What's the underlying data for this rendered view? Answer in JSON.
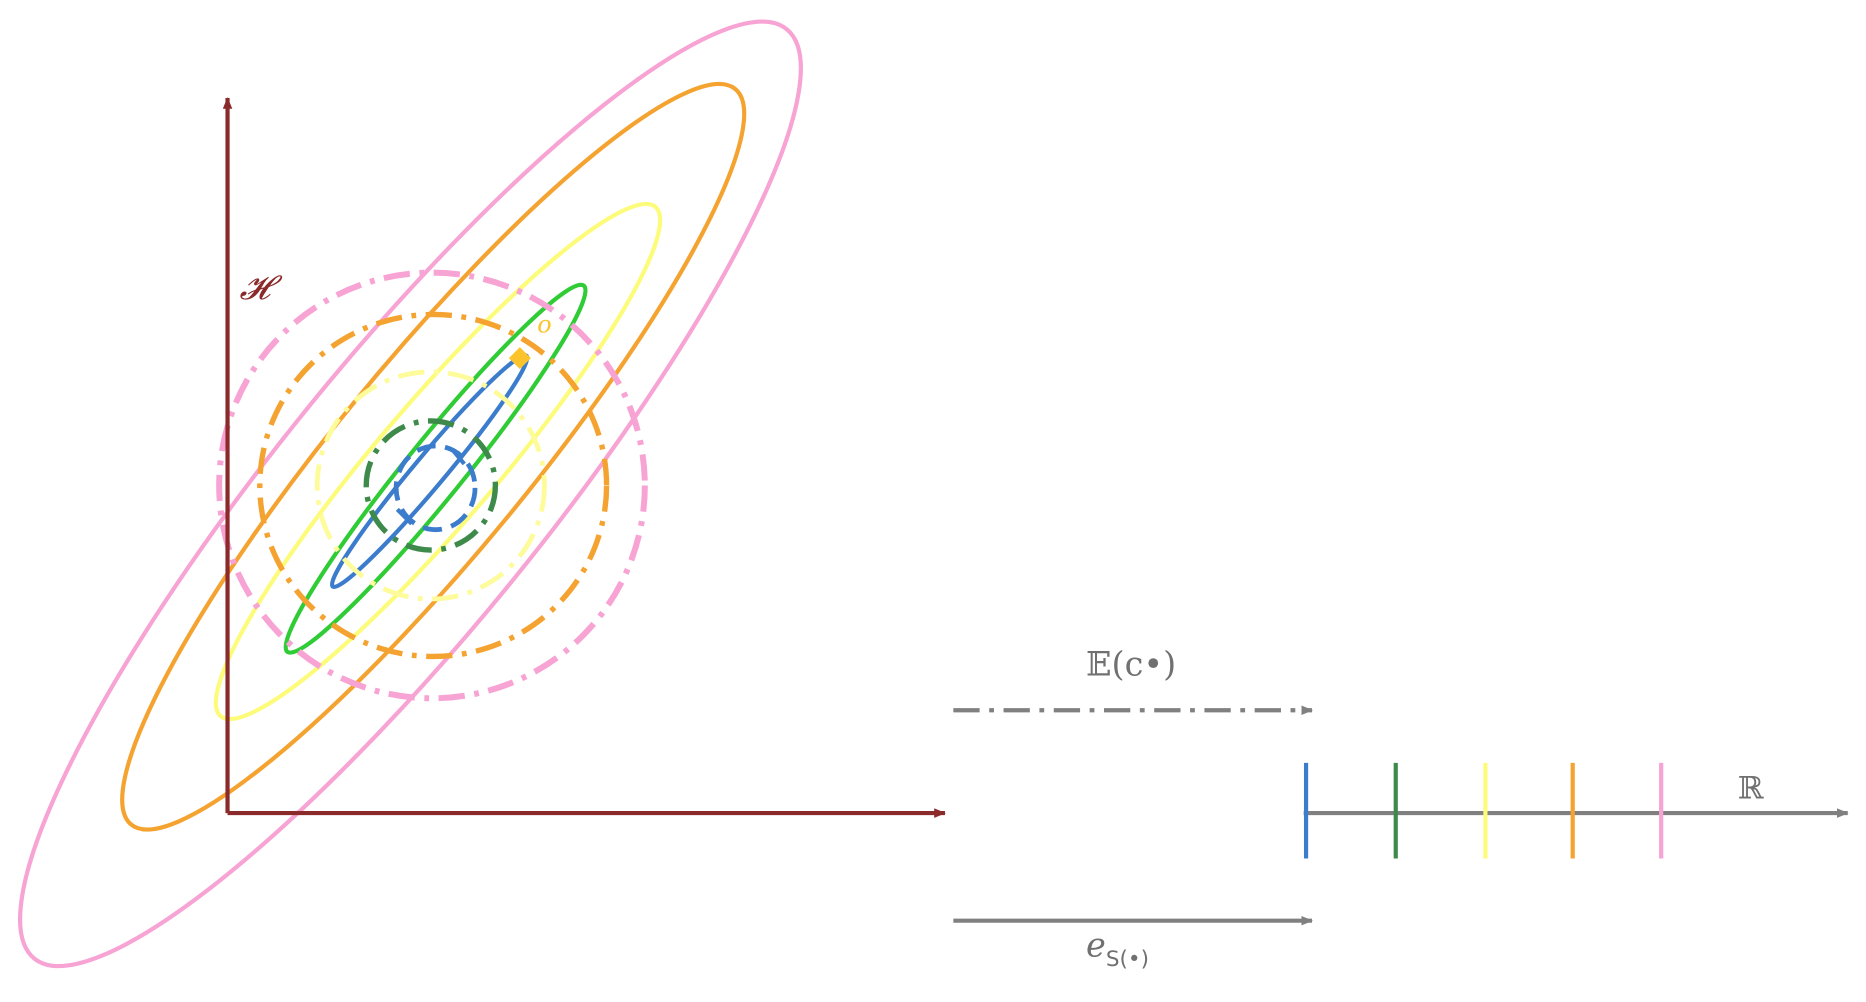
{
  "labels": {
    "vertical_axis": "𝓗",
    "point": "o",
    "expectation": "𝔼(c•)",
    "real_line": "ℝ",
    "embedding": {
      "base": "e",
      "subscript": "S(•)"
    }
  }
}
